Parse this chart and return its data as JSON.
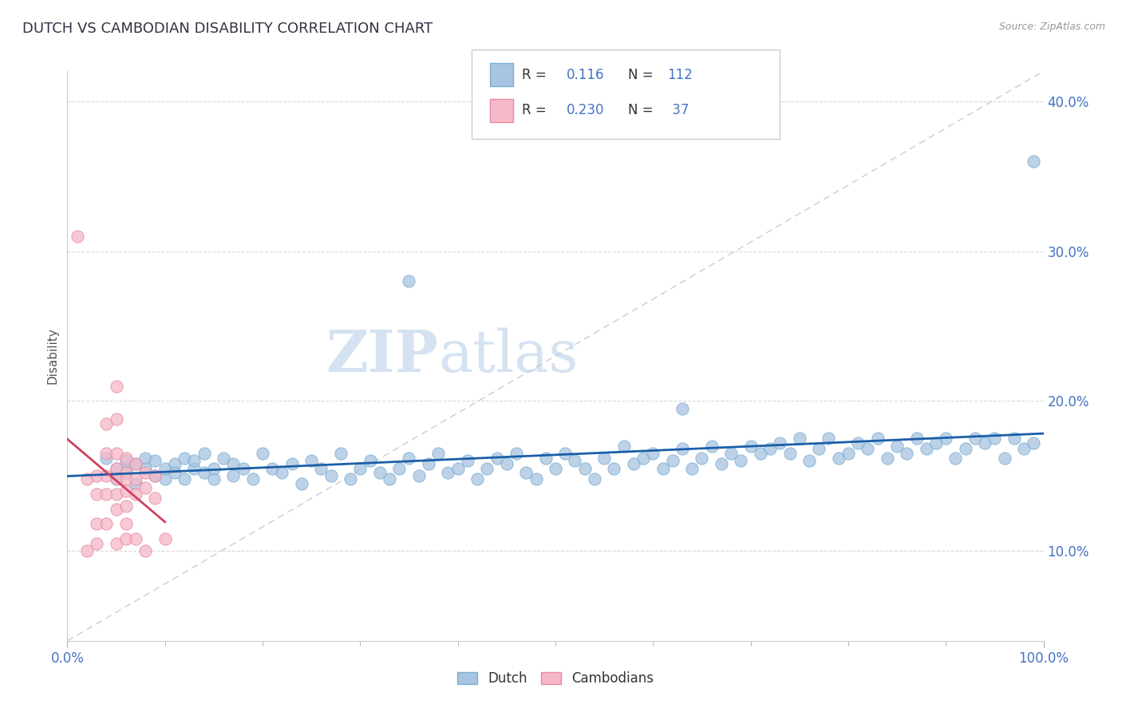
{
  "title": "DUTCH VS CAMBODIAN DISABILITY CORRELATION CHART",
  "source": "Source: ZipAtlas.com",
  "ylabel": "Disability",
  "xlim": [
    0.0,
    1.0
  ],
  "ylim": [
    0.04,
    0.42
  ],
  "yticks": [
    0.1,
    0.2,
    0.3,
    0.4
  ],
  "ytick_labels": [
    "10.0%",
    "20.0%",
    "30.0%",
    "40.0%"
  ],
  "dutch_color": "#a8c4e0",
  "dutch_edge_color": "#7aafd4",
  "cambodian_color": "#f5b8c8",
  "cambodian_edge_color": "#e88aa0",
  "dutch_line_color": "#1a5fa8",
  "cambodian_line_color": "#d04060",
  "watermark_color": "#d0dff0",
  "background_color": "#ffffff",
  "grid_color": "#d8d8d8",
  "diag_color": "#cccccc",
  "dutch_x": [
    0.04,
    0.05,
    0.05,
    0.06,
    0.06,
    0.07,
    0.07,
    0.08,
    0.08,
    0.09,
    0.09,
    0.1,
    0.1,
    0.11,
    0.11,
    0.12,
    0.12,
    0.13,
    0.13,
    0.14,
    0.14,
    0.15,
    0.15,
    0.16,
    0.17,
    0.17,
    0.18,
    0.19,
    0.2,
    0.21,
    0.22,
    0.23,
    0.24,
    0.25,
    0.26,
    0.27,
    0.28,
    0.29,
    0.3,
    0.31,
    0.32,
    0.33,
    0.34,
    0.35,
    0.36,
    0.37,
    0.38,
    0.39,
    0.4,
    0.41,
    0.42,
    0.43,
    0.44,
    0.45,
    0.46,
    0.47,
    0.48,
    0.49,
    0.5,
    0.51,
    0.52,
    0.53,
    0.54,
    0.55,
    0.56,
    0.57,
    0.58,
    0.59,
    0.6,
    0.61,
    0.62,
    0.63,
    0.64,
    0.65,
    0.66,
    0.67,
    0.68,
    0.69,
    0.7,
    0.71,
    0.72,
    0.73,
    0.74,
    0.75,
    0.76,
    0.77,
    0.78,
    0.79,
    0.8,
    0.81,
    0.82,
    0.83,
    0.84,
    0.85,
    0.86,
    0.87,
    0.88,
    0.89,
    0.9,
    0.91,
    0.92,
    0.93,
    0.94,
    0.95,
    0.96,
    0.97,
    0.98,
    0.99,
    0.35,
    0.63,
    0.99
  ],
  "dutch_y": [
    0.162,
    0.155,
    0.148,
    0.16,
    0.152,
    0.158,
    0.145,
    0.162,
    0.155,
    0.15,
    0.16,
    0.148,
    0.155,
    0.158,
    0.152,
    0.162,
    0.148,
    0.155,
    0.16,
    0.152,
    0.165,
    0.148,
    0.155,
    0.162,
    0.15,
    0.158,
    0.155,
    0.148,
    0.165,
    0.155,
    0.152,
    0.158,
    0.145,
    0.16,
    0.155,
    0.15,
    0.165,
    0.148,
    0.155,
    0.16,
    0.152,
    0.148,
    0.155,
    0.162,
    0.15,
    0.158,
    0.165,
    0.152,
    0.155,
    0.16,
    0.148,
    0.155,
    0.162,
    0.158,
    0.165,
    0.152,
    0.148,
    0.162,
    0.155,
    0.165,
    0.16,
    0.155,
    0.148,
    0.162,
    0.155,
    0.17,
    0.158,
    0.162,
    0.165,
    0.155,
    0.16,
    0.168,
    0.155,
    0.162,
    0.17,
    0.158,
    0.165,
    0.16,
    0.17,
    0.165,
    0.168,
    0.172,
    0.165,
    0.175,
    0.16,
    0.168,
    0.175,
    0.162,
    0.165,
    0.172,
    0.168,
    0.175,
    0.162,
    0.17,
    0.165,
    0.175,
    0.168,
    0.172,
    0.175,
    0.162,
    0.168,
    0.175,
    0.172,
    0.175,
    0.162,
    0.175,
    0.168,
    0.172,
    0.28,
    0.195,
    0.36
  ],
  "cambodian_x": [
    0.01,
    0.02,
    0.02,
    0.03,
    0.03,
    0.03,
    0.03,
    0.04,
    0.04,
    0.04,
    0.04,
    0.04,
    0.05,
    0.05,
    0.05,
    0.05,
    0.05,
    0.05,
    0.05,
    0.05,
    0.06,
    0.06,
    0.06,
    0.06,
    0.06,
    0.06,
    0.06,
    0.07,
    0.07,
    0.07,
    0.07,
    0.08,
    0.08,
    0.08,
    0.09,
    0.09,
    0.1
  ],
  "cambodian_y": [
    0.31,
    0.148,
    0.1,
    0.15,
    0.138,
    0.118,
    0.105,
    0.185,
    0.165,
    0.15,
    0.138,
    0.118,
    0.21,
    0.188,
    0.165,
    0.155,
    0.148,
    0.138,
    0.128,
    0.105,
    0.162,
    0.152,
    0.148,
    0.14,
    0.13,
    0.118,
    0.108,
    0.158,
    0.148,
    0.138,
    0.108,
    0.152,
    0.142,
    0.1,
    0.15,
    0.135,
    0.108
  ]
}
